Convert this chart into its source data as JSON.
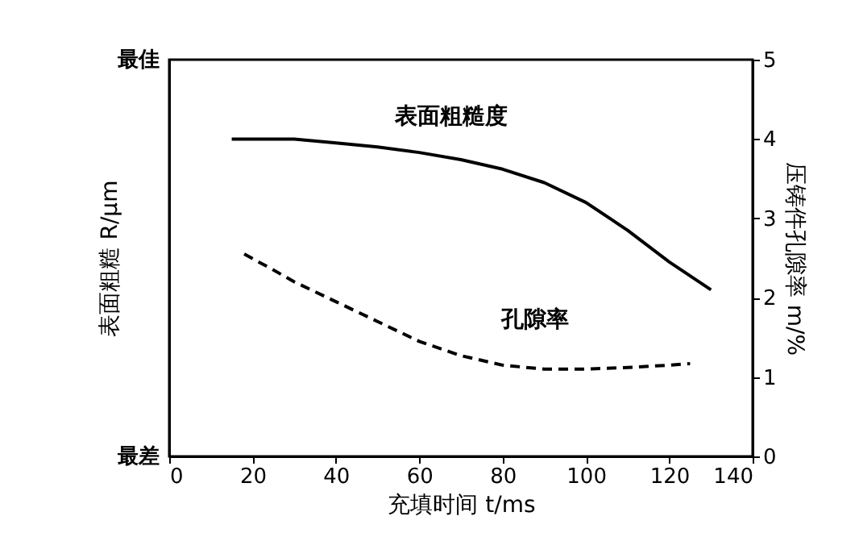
{
  "chart_data": {
    "type": "line",
    "xlabel": "充填时间 t/ms",
    "ylabel": "表面粗糙 R/μm",
    "y2label": "压铸件孔隙率 m/%",
    "annotations": [
      "最佳",
      "最差"
    ],
    "xlim": [
      0,
      140
    ],
    "xticks": [
      0,
      20,
      40,
      60,
      80,
      100,
      120,
      140
    ],
    "y2lim": [
      0,
      5
    ],
    "y2ticks": [
      0,
      1,
      2,
      3,
      4,
      5
    ],
    "grid": false,
    "marker": "none",
    "series": [
      {
        "name": "表面粗糙度",
        "color": "#000000",
        "line_style": "solid",
        "axis": "y2",
        "x": [
          15,
          20,
          30,
          40,
          50,
          60,
          70,
          80,
          90,
          100,
          110,
          120,
          130
        ],
        "values": [
          4.0,
          4.0,
          4.0,
          3.95,
          3.9,
          3.83,
          3.74,
          3.62,
          3.45,
          3.2,
          2.85,
          2.45,
          2.1
        ]
      },
      {
        "name": "孔隙率",
        "color": "#000000",
        "line_style": "dashed",
        "axis": "y2",
        "x": [
          18,
          25,
          30,
          40,
          50,
          60,
          70,
          80,
          90,
          100,
          110,
          120,
          125
        ],
        "values": [
          2.55,
          2.35,
          2.2,
          1.95,
          1.7,
          1.45,
          1.27,
          1.15,
          1.1,
          1.1,
          1.12,
          1.15,
          1.17
        ]
      }
    ]
  }
}
